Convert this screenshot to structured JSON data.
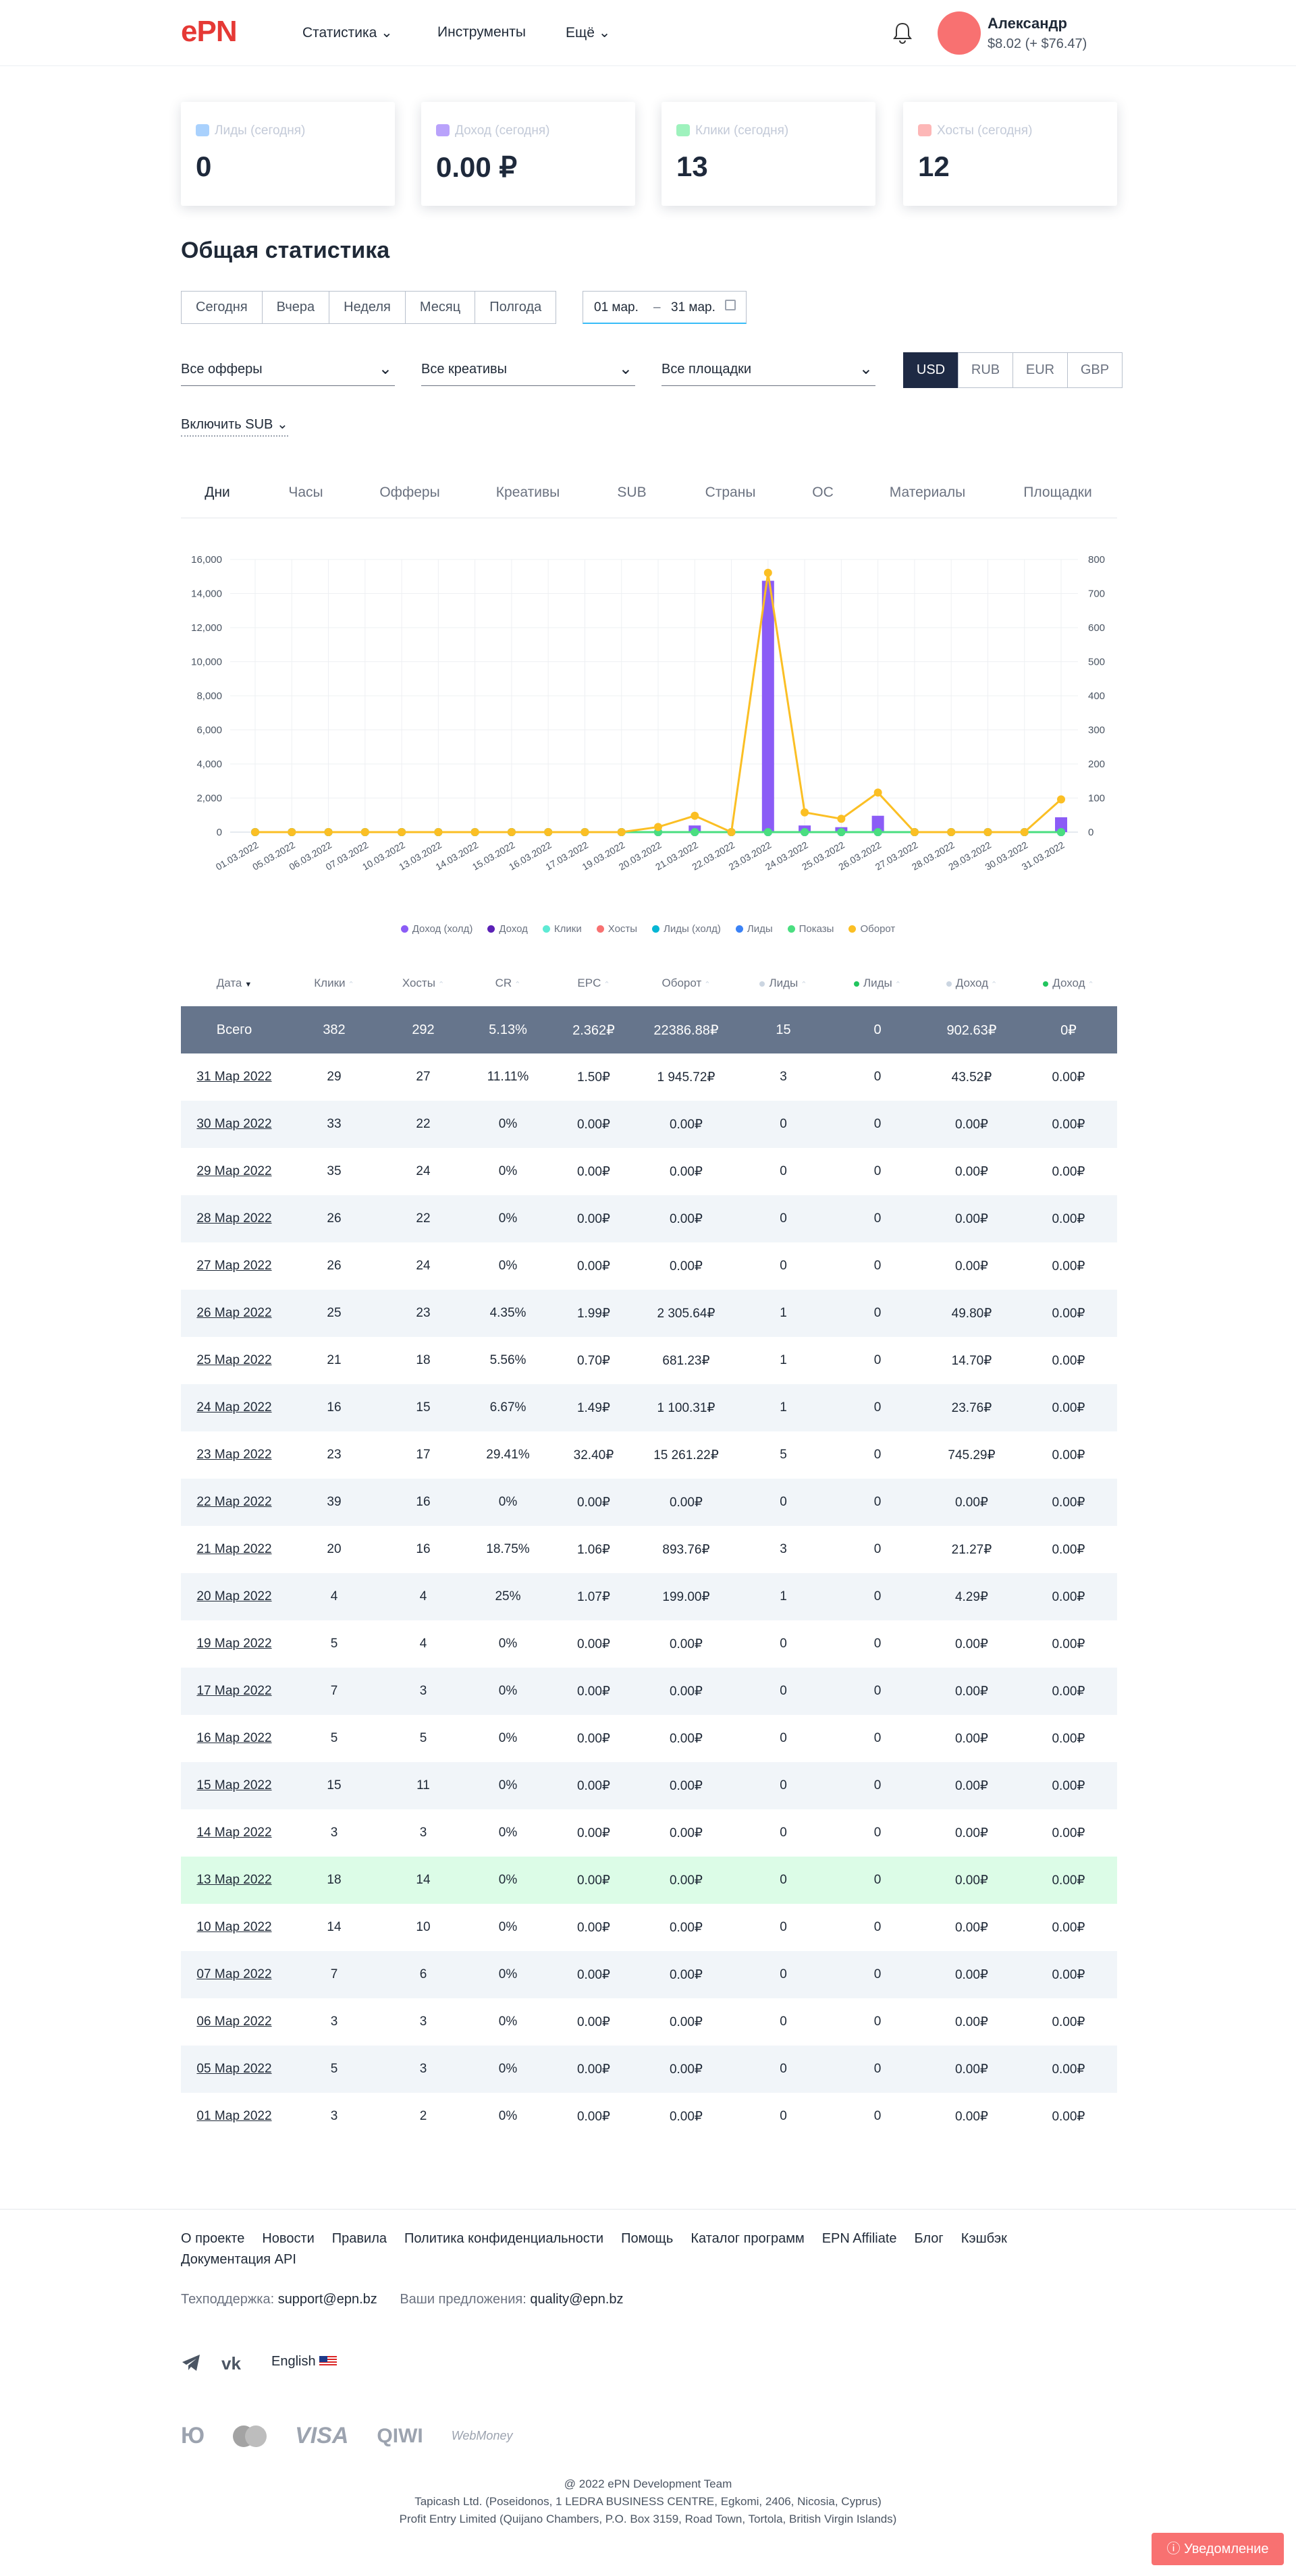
{
  "header": {
    "logo": "ePN",
    "nav": [
      "Статистика",
      "Инструменты",
      "Ещё"
    ],
    "user": "Александр",
    "balance": "$8.02 (+ $76.47)"
  },
  "cards": [
    {
      "label": "Лиды (сегодня)",
      "value": "0"
    },
    {
      "label": "Доход (сегодня)",
      "value": "0.00 ₽"
    },
    {
      "label": "Клики (сегодня)",
      "value": "13"
    },
    {
      "label": "Хосты (сегодня)",
      "value": "12"
    }
  ],
  "section_title": "Общая статистика",
  "periods": [
    "Сегодня",
    "Вчера",
    "Неделя",
    "Месяц",
    "Полгода"
  ],
  "date_range": {
    "from": "01 мар.",
    "sep": "–",
    "to": "31 мар."
  },
  "filters": [
    "Все офферы",
    "Все креативы",
    "Все площадки"
  ],
  "currencies": [
    "USD",
    "RUB",
    "EUR",
    "GBP"
  ],
  "sub_toggle": "Включить SUB",
  "tabs": [
    "Дни",
    "Часы",
    "Офферы",
    "Креативы",
    "SUB",
    "Страны",
    "ОС",
    "Материалы",
    "Площадки"
  ],
  "chart_data": {
    "type": "bar",
    "categories": [
      "01.03.2022",
      "05.03.2022",
      "06.03.2022",
      "07.03.2022",
      "10.03.2022",
      "13.03.2022",
      "14.03.2022",
      "15.03.2022",
      "16.03.2022",
      "17.03.2022",
      "19.03.2022",
      "20.03.2022",
      "21.03.2022",
      "22.03.2022",
      "23.03.2022",
      "24.03.2022",
      "25.03.2022",
      "26.03.2022",
      "27.03.2022",
      "28.03.2022",
      "29.03.2022",
      "30.03.2022",
      "31.03.2022"
    ],
    "ylim": [
      0,
      16000
    ],
    "yticks": [
      0,
      {
        "value": 2000,
        "label": "2,000"
      },
      {
        "value": 4000,
        "label": "4,000"
      },
      {
        "value": 6000,
        "label": "6,000"
      },
      {
        "value": 8000,
        "label": "8,000"
      },
      {
        "value": 10000,
        "label": "10,000"
      },
      {
        "value": 12000,
        "label": "12,000"
      },
      {
        "value": 14000,
        "label": "14,000"
      },
      {
        "value": 16000,
        "label": "16,000"
      }
    ],
    "y2lim": [
      0,
      800
    ],
    "y2ticks": [
      0,
      100,
      200,
      300,
      400,
      500,
      600,
      700,
      800
    ],
    "grid": true,
    "series": [
      {
        "name": "Доход (холд)",
        "type": "bar",
        "color": "#8b5cf6",
        "values": [
          0,
          0,
          0,
          0,
          0,
          0,
          0,
          0,
          0,
          0,
          0,
          0,
          390,
          0,
          14750,
          390,
          290,
          960,
          0,
          0,
          0,
          0,
          870
        ]
      },
      {
        "name": "Доход",
        "type": "bar",
        "color": "#5b21b6",
        "values": [
          0,
          0,
          0,
          0,
          0,
          0,
          0,
          0,
          0,
          0,
          0,
          0,
          0,
          0,
          0,
          0,
          0,
          0,
          0,
          0,
          0,
          0,
          0
        ]
      },
      {
        "name": "Клики",
        "type": "line",
        "color": "#5eead4",
        "axis": "y2",
        "values": [
          0,
          0,
          0,
          0,
          0,
          0,
          0,
          0,
          0,
          0,
          0,
          0,
          0,
          0,
          0,
          0,
          0,
          0,
          0,
          0,
          0,
          0,
          0
        ]
      },
      {
        "name": "Хосты",
        "type": "line",
        "color": "#f87171",
        "axis": "y2",
        "values": [
          0,
          0,
          0,
          0,
          0,
          0,
          0,
          0,
          0,
          0,
          0,
          0,
          0,
          0,
          0,
          0,
          0,
          0,
          0,
          0,
          0,
          0,
          0
        ]
      },
      {
        "name": "Лиды (холд)",
        "type": "line",
        "color": "#06b6d4",
        "axis": "y2",
        "values": [
          0,
          0,
          0,
          0,
          0,
          0,
          0,
          0,
          0,
          0,
          0,
          0,
          0,
          0,
          0,
          0,
          0,
          0,
          0,
          0,
          0,
          0,
          0
        ]
      },
      {
        "name": "Лиды",
        "type": "line",
        "color": "#3b82f6",
        "axis": "y2",
        "values": [
          0,
          0,
          0,
          0,
          0,
          0,
          0,
          0,
          0,
          0,
          0,
          0,
          0,
          0,
          0,
          0,
          0,
          0,
          0,
          0,
          0,
          0,
          0
        ]
      },
      {
        "name": "Показы",
        "type": "line",
        "color": "#4ade80",
        "axis": "y2",
        "values": [
          0,
          0,
          0,
          0,
          0,
          0,
          0,
          0,
          0,
          0,
          0,
          0,
          0,
          0,
          0,
          0,
          0,
          0,
          0,
          0,
          0,
          0,
          0
        ]
      },
      {
        "name": "Оборот",
        "type": "line",
        "color": "#fbbf24",
        "axis": "y2",
        "values": [
          0,
          0,
          0,
          0,
          0,
          0,
          0,
          0,
          0,
          0,
          0,
          15,
          48,
          0,
          761,
          58,
          39,
          116,
          0,
          0,
          0,
          0,
          96
        ]
      }
    ]
  },
  "table": {
    "header": [
      "Дата",
      "Клики",
      "Хосты",
      "CR",
      "EPC",
      "Оборот",
      "Лиды",
      "Лиды",
      "Доход",
      "Доход"
    ],
    "total": [
      "Всего",
      "382",
      "292",
      "5.13%",
      "2.362₽",
      "22386.88₽",
      "15",
      "0",
      "902.63₽",
      "0₽"
    ],
    "rows": [
      [
        "31 Мар 2022",
        "29",
        "27",
        "11.11%",
        "1.50₽",
        "1 945.72₽",
        "3",
        "0",
        "43.52₽",
        "0.00₽"
      ],
      [
        "30 Мар 2022",
        "33",
        "22",
        "0%",
        "0.00₽",
        "0.00₽",
        "0",
        "0",
        "0.00₽",
        "0.00₽"
      ],
      [
        "29 Мар 2022",
        "35",
        "24",
        "0%",
        "0.00₽",
        "0.00₽",
        "0",
        "0",
        "0.00₽",
        "0.00₽"
      ],
      [
        "28 Мар 2022",
        "26",
        "22",
        "0%",
        "0.00₽",
        "0.00₽",
        "0",
        "0",
        "0.00₽",
        "0.00₽"
      ],
      [
        "27 Мар 2022",
        "26",
        "24",
        "0%",
        "0.00₽",
        "0.00₽",
        "0",
        "0",
        "0.00₽",
        "0.00₽"
      ],
      [
        "26 Мар 2022",
        "25",
        "23",
        "4.35%",
        "1.99₽",
        "2 305.64₽",
        "1",
        "0",
        "49.80₽",
        "0.00₽"
      ],
      [
        "25 Мар 2022",
        "21",
        "18",
        "5.56%",
        "0.70₽",
        "681.23₽",
        "1",
        "0",
        "14.70₽",
        "0.00₽"
      ],
      [
        "24 Мар 2022",
        "16",
        "15",
        "6.67%",
        "1.49₽",
        "1 100.31₽",
        "1",
        "0",
        "23.76₽",
        "0.00₽"
      ],
      [
        "23 Мар 2022",
        "23",
        "17",
        "29.41%",
        "32.40₽",
        "15 261.22₽",
        "5",
        "0",
        "745.29₽",
        "0.00₽"
      ],
      [
        "22 Мар 2022",
        "39",
        "16",
        "0%",
        "0.00₽",
        "0.00₽",
        "0",
        "0",
        "0.00₽",
        "0.00₽"
      ],
      [
        "21 Мар 2022",
        "20",
        "16",
        "18.75%",
        "1.06₽",
        "893.76₽",
        "3",
        "0",
        "21.27₽",
        "0.00₽"
      ],
      [
        "20 Мар 2022",
        "4",
        "4",
        "25%",
        "1.07₽",
        "199.00₽",
        "1",
        "0",
        "4.29₽",
        "0.00₽"
      ],
      [
        "19 Мар 2022",
        "5",
        "4",
        "0%",
        "0.00₽",
        "0.00₽",
        "0",
        "0",
        "0.00₽",
        "0.00₽"
      ],
      [
        "17 Мар 2022",
        "7",
        "3",
        "0%",
        "0.00₽",
        "0.00₽",
        "0",
        "0",
        "0.00₽",
        "0.00₽"
      ],
      [
        "16 Мар 2022",
        "5",
        "5",
        "0%",
        "0.00₽",
        "0.00₽",
        "0",
        "0",
        "0.00₽",
        "0.00₽"
      ],
      [
        "15 Мар 2022",
        "15",
        "11",
        "0%",
        "0.00₽",
        "0.00₽",
        "0",
        "0",
        "0.00₽",
        "0.00₽"
      ],
      [
        "14 Мар 2022",
        "3",
        "3",
        "0%",
        "0.00₽",
        "0.00₽",
        "0",
        "0",
        "0.00₽",
        "0.00₽"
      ],
      [
        "13 Мар 2022",
        "18",
        "14",
        "0%",
        "0.00₽",
        "0.00₽",
        "0",
        "0",
        "0.00₽",
        "0.00₽"
      ],
      [
        "10 Мар 2022",
        "14",
        "10",
        "0%",
        "0.00₽",
        "0.00₽",
        "0",
        "0",
        "0.00₽",
        "0.00₽"
      ],
      [
        "07 Мар 2022",
        "7",
        "6",
        "0%",
        "0.00₽",
        "0.00₽",
        "0",
        "0",
        "0.00₽",
        "0.00₽"
      ],
      [
        "06 Мар 2022",
        "3",
        "3",
        "0%",
        "0.00₽",
        "0.00₽",
        "0",
        "0",
        "0.00₽",
        "0.00₽"
      ],
      [
        "05 Мар 2022",
        "5",
        "3",
        "0%",
        "0.00₽",
        "0.00₽",
        "0",
        "0",
        "0.00₽",
        "0.00₽"
      ],
      [
        "01 Мар 2022",
        "3",
        "2",
        "0%",
        "0.00₽",
        "0.00₽",
        "0",
        "0",
        "0.00₽",
        "0.00₽"
      ]
    ]
  },
  "footer": {
    "links": [
      "О проекте",
      "Новости",
      "Правила",
      "Политика конфиденциальности",
      "Помощь",
      "Каталог программ",
      "EPN Affiliate",
      "Блог",
      "Кэшбэк",
      "Документация API"
    ],
    "support_label": "Техподдержка:",
    "support_email": "support@epn.bz",
    "ideas_label": "Ваши предложения:",
    "ideas_email": "quality@epn.bz",
    "language": "English",
    "payments": [
      "VISA",
      "QIWI",
      "WebMoney"
    ],
    "copyright": [
      "@ 2022 ePN Development Team",
      "Tapicash Ltd. (Poseidonos, 1 LEDRA BUSINESS CENTRE, Egkomi, 2406, Nicosia, Cyprus)",
      "Profit Entry Limited (Quijano Chambers, P.O. Box 3159, Road Town, Tortola, British Virgin Islands)"
    ]
  },
  "notification": "Уведомление"
}
